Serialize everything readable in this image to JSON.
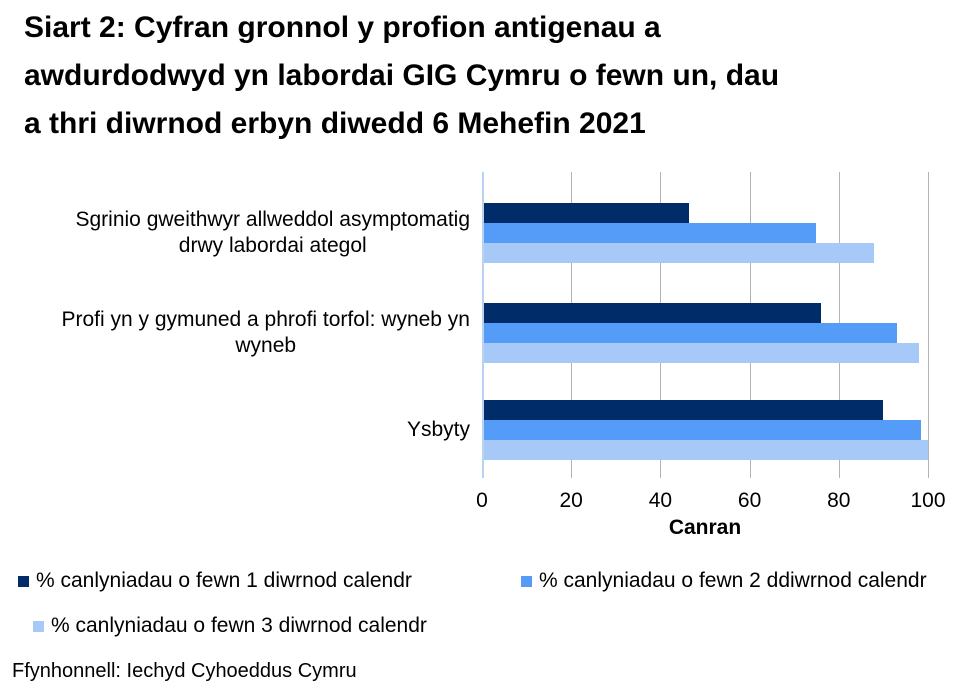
{
  "title_lines": [
    "Siart 2: Cyfran gronnol y profion antigenau a",
    "awdurdodwyd yn labordai GIG Cymru o fewn un, dau",
    "a thri diwrnod erbyn diwedd 6 Mehefin 2021"
  ],
  "source_note": "Ffynhonnell: Iechyd Cyhoeddus Cymru",
  "chart_data": {
    "type": "bar",
    "orientation": "horizontal",
    "title": "Siart 2: Cyfran gronnol y profion antigenau a awdurdodwyd yn labordai GIG Cymru o fewn un, dau a thri diwrnod erbyn diwedd 6 Mehefin 2021",
    "categories": [
      "Sgrinio gweithwyr allweddol asymptomatig drwy labordai ategol",
      "Profi yn y gymuned a phrofi torfol: wyneb yn wyneb",
      "Ysbyty"
    ],
    "categories_lines": [
      [
        "Sgrinio gweithwyr allweddol asymptomatig",
        "drwy labordai ategol"
      ],
      [
        "Profi yn y gymuned a phrofi torfol: wyneb yn",
        "wyneb"
      ],
      [
        "Ysbyty"
      ]
    ],
    "series": [
      {
        "name": "% canlyniadau o fewn 1 diwrnod calendr",
        "color": "#002d6a",
        "values": [
          46,
          75.5,
          89.5
        ]
      },
      {
        "name": "% canlyniadau o fewn 2 ddiwrnod calendr",
        "color": "#549cf8",
        "values": [
          74.5,
          92.5,
          98
        ]
      },
      {
        "name": "% canlyniadau o fewn 3 diwrnod calendr",
        "color": "#a6c9f8",
        "values": [
          87.5,
          97.5,
          99.5
        ]
      }
    ],
    "xlabel": "Canran",
    "xlim": [
      0,
      100
    ],
    "xticks": [
      0,
      20,
      40,
      60,
      80,
      100
    ],
    "grid": true,
    "gridline_color": "#b3b3b3",
    "zero_axis_color": "#b9d3f2",
    "legend_position": "bottom",
    "legend_rows": [
      [
        0,
        1
      ],
      [
        2
      ]
    ]
  }
}
